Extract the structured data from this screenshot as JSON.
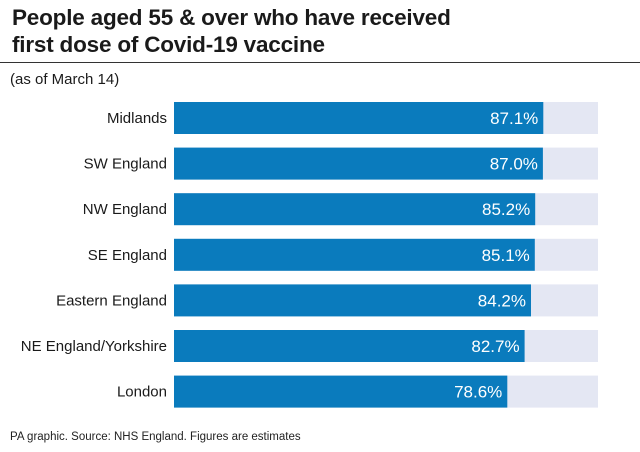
{
  "header": {
    "title_line1": "People aged 55 & over who have received",
    "title_line2": "first dose of Covid-19 vaccine",
    "subtitle": "(as of March 14)"
  },
  "footer": {
    "source": "PA graphic. Source: NHS England. Figures are estimates"
  },
  "colors": {
    "bar": "#0a7bbd",
    "track": "#e4e7f3",
    "label_text": "#ffffff",
    "category_text": "#1a1a1a"
  },
  "chart_data": {
    "type": "bar",
    "orientation": "horizontal",
    "categories": [
      "Midlands",
      "SW England",
      "NW England",
      "SE England",
      "Eastern England",
      "NE England/Yorkshire",
      "London"
    ],
    "values": [
      87.1,
      87.0,
      85.2,
      85.1,
      84.2,
      82.7,
      78.6
    ],
    "value_labels": [
      "87.1%",
      "87.0%",
      "85.2%",
      "85.1%",
      "84.2%",
      "82.7%",
      "78.6%"
    ],
    "xlim": [
      0,
      100
    ],
    "grid": false,
    "legend": "none"
  }
}
